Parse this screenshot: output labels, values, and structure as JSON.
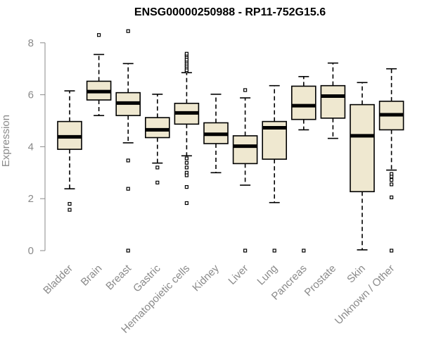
{
  "chart_data": {
    "type": "boxplot",
    "title": "ENSG00000250988 - RP11-752G15.6",
    "xlabel": "",
    "ylabel": "Expression",
    "ylim": [
      0,
      8.5
    ],
    "yticks": [
      0,
      2,
      4,
      6,
      8
    ],
    "grid": false,
    "box_fill": "#efe8d0",
    "categories": [
      "Bladder",
      "Brain",
      "Breast",
      "Gastric",
      "Hematopoietic cells",
      "Kidney",
      "Liver",
      "Lung",
      "Pancreas",
      "Prostate",
      "Skin",
      "Unknown / Other"
    ],
    "boxes": [
      {
        "q1": 3.9,
        "median": 4.38,
        "q3": 4.97,
        "whisker_low": 2.38,
        "whisker_high": 6.15,
        "outliers": [
          1.8,
          1.57
        ]
      },
      {
        "q1": 5.8,
        "median": 6.12,
        "q3": 6.52,
        "whisker_low": 5.2,
        "whisker_high": 7.55,
        "outliers": [
          8.3
        ]
      },
      {
        "q1": 5.2,
        "median": 5.68,
        "q3": 6.08,
        "whisker_low": 4.15,
        "whisker_high": 7.2,
        "outliers": [
          3.47,
          2.38,
          0.0,
          8.45
        ]
      },
      {
        "q1": 4.35,
        "median": 4.65,
        "q3": 5.12,
        "whisker_low": 3.37,
        "whisker_high": 6.02,
        "outliers": [
          3.2,
          2.62
        ]
      },
      {
        "q1": 4.87,
        "median": 5.3,
        "q3": 5.67,
        "whisker_low": 3.65,
        "whisker_high": 6.85,
        "outliers": [
          6.9,
          6.95,
          7.05,
          7.12,
          7.2,
          7.28,
          7.35,
          7.45,
          7.52,
          7.58,
          3.55,
          3.38,
          3.2,
          3.0,
          2.9,
          2.45,
          1.83
        ]
      },
      {
        "q1": 4.12,
        "median": 4.48,
        "q3": 4.92,
        "whisker_low": 3.0,
        "whisker_high": 6.02,
        "outliers": []
      },
      {
        "q1": 3.35,
        "median": 4.02,
        "q3": 4.42,
        "whisker_low": 2.52,
        "whisker_high": 5.88,
        "outliers": [
          6.18,
          0.0
        ]
      },
      {
        "q1": 3.52,
        "median": 4.73,
        "q3": 4.97,
        "whisker_low": 1.85,
        "whisker_high": 6.35,
        "outliers": [
          0.0
        ]
      },
      {
        "q1": 5.05,
        "median": 5.58,
        "q3": 6.33,
        "whisker_low": 4.65,
        "whisker_high": 6.7,
        "outliers": [
          0.0
        ]
      },
      {
        "q1": 5.1,
        "median": 5.95,
        "q3": 6.35,
        "whisker_low": 4.32,
        "whisker_high": 7.22,
        "outliers": []
      },
      {
        "q1": 2.27,
        "median": 4.42,
        "q3": 5.62,
        "whisker_low": 0.03,
        "whisker_high": 6.47,
        "outliers": []
      },
      {
        "q1": 4.65,
        "median": 5.23,
        "q3": 5.75,
        "whisker_low": 3.1,
        "whisker_high": 7.0,
        "outliers": [
          2.95,
          2.85,
          2.72,
          2.55,
          2.05,
          0.0
        ]
      }
    ]
  }
}
